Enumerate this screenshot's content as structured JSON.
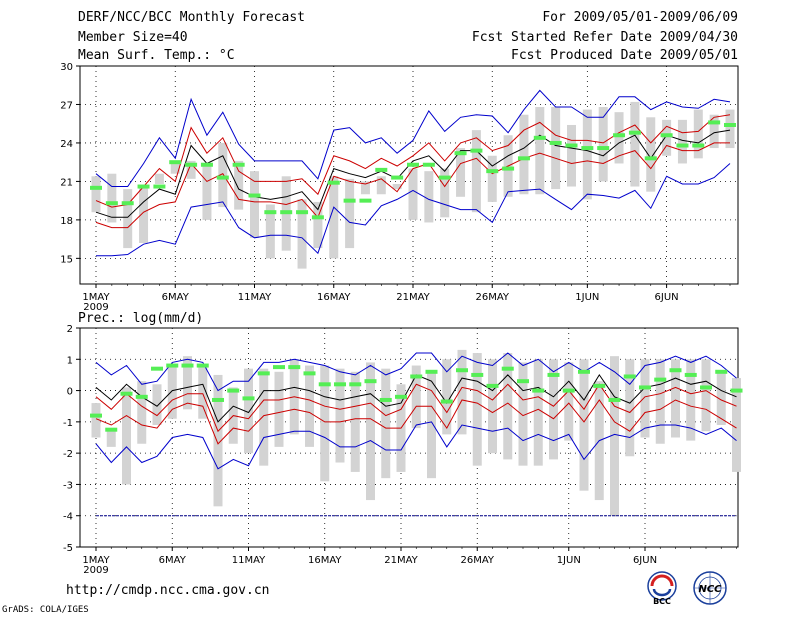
{
  "header": {
    "title": "DERF/NCC/BCC Monthly Forecast",
    "member_size": "Member Size=40",
    "variable1": "Mean Surf. Temp.: °C",
    "period": "For 2009/05/01-2009/06/09",
    "started": "Fcst Started Refer Date 2009/04/30",
    "produced": "Fcst Produced Date 2009/05/01"
  },
  "footer": {
    "url": "http://cmdp.ncc.cma.gov.cn",
    "credit": "GrADS: COLA/IGES",
    "logo1": "BCC",
    "logo2": "NCC"
  },
  "colors": {
    "max_min": "#0000cc",
    "spread": "#cc0000",
    "mean": "#000000",
    "bar": "#d3d3d3",
    "mode": "#55ee55",
    "ref": "#000088"
  },
  "chart_data": [
    {
      "type": "line",
      "title": "Mean Surf. Temp.: °C",
      "ylim": [
        13,
        30
      ],
      "yticks": [
        15,
        18,
        21,
        24,
        27,
        30
      ],
      "xticks": [
        {
          "day": 1,
          "label": "1MAY",
          "sub": "2009"
        },
        {
          "day": 6,
          "label": "6MAY"
        },
        {
          "day": 11,
          "label": "11MAY"
        },
        {
          "day": 16,
          "label": "16MAY"
        },
        {
          "day": 21,
          "label": "21MAY"
        },
        {
          "day": 26,
          "label": "26MAY"
        },
        {
          "day": 32,
          "label": "1JUN"
        },
        {
          "day": 37,
          "label": "6JUN"
        }
      ],
      "series": {
        "max": [
          21.6,
          20.6,
          20.6,
          22.4,
          24.4,
          22.8,
          27.4,
          24.6,
          26.4,
          23.9,
          22.6,
          22.6,
          22.6,
          22.6,
          21.2,
          25.0,
          25.2,
          24.0,
          24.4,
          23.2,
          24.2,
          26.5,
          24.9,
          26.0,
          26.2,
          26.1,
          24.8,
          26.6,
          28.1,
          26.8,
          26.8,
          26.0,
          26.0,
          27.6,
          27.6,
          26.6,
          27.2,
          26.8,
          26.7,
          27.4,
          27.2
        ],
        "q_hi": [
          19.5,
          19.0,
          19.2,
          20.6,
          22.0,
          21.0,
          25.2,
          23.2,
          24.4,
          21.8,
          21.0,
          21.0,
          21.0,
          21.2,
          20.0,
          23.0,
          22.6,
          22.0,
          22.8,
          22.2,
          23.0,
          24.0,
          22.6,
          24.0,
          24.4,
          23.4,
          23.8,
          25.0,
          25.6,
          24.6,
          24.2,
          24.2,
          24.0,
          24.8,
          25.4,
          24.0,
          25.3,
          24.8,
          24.9,
          26.0,
          26.2
        ],
        "mean": [
          18.6,
          18.2,
          18.2,
          19.4,
          20.4,
          20.0,
          23.8,
          22.4,
          23.0,
          20.4,
          19.8,
          19.6,
          19.8,
          20.2,
          18.8,
          22.0,
          21.6,
          21.3,
          21.8,
          21.2,
          22.6,
          23.0,
          21.8,
          23.4,
          23.4,
          22.2,
          23.0,
          23.6,
          24.6,
          23.8,
          23.6,
          23.4,
          23.0,
          24.0,
          24.6,
          22.8,
          24.6,
          24.2,
          24.0,
          24.8,
          25.0
        ],
        "q_lo": [
          17.8,
          17.4,
          17.4,
          18.6,
          19.2,
          19.4,
          22.4,
          21.0,
          21.6,
          19.6,
          19.4,
          19.4,
          19.2,
          19.6,
          18.2,
          21.4,
          21.0,
          20.8,
          21.2,
          20.2,
          22.0,
          22.4,
          20.6,
          22.4,
          22.8,
          21.6,
          22.2,
          22.8,
          23.2,
          22.8,
          22.4,
          22.6,
          22.4,
          23.0,
          23.4,
          22.0,
          23.8,
          23.4,
          23.4,
          24.0,
          24.0
        ],
        "min": [
          15.2,
          15.2,
          15.3,
          16.1,
          16.4,
          16.1,
          19.0,
          19.2,
          19.4,
          17.4,
          16.6,
          16.8,
          16.8,
          16.6,
          15.4,
          19.0,
          17.8,
          17.6,
          19.1,
          19.6,
          20.3,
          19.6,
          19.2,
          18.8,
          18.8,
          17.8,
          20.2,
          20.3,
          20.4,
          19.6,
          18.8,
          20.0,
          19.9,
          19.7,
          20.3,
          18.9,
          21.4,
          20.8,
          20.8,
          21.3,
          22.4
        ],
        "bar_top": [
          21.4,
          21.6,
          20.4,
          20.6,
          21.6,
          22.4,
          22.6,
          22.2,
          24.0,
          22.6,
          21.8,
          19.2,
          21.4,
          19.6,
          19.4,
          21.4,
          21.2,
          21.0,
          21.4,
          20.8,
          22.0,
          21.8,
          22.0,
          23.6,
          25.0,
          23.0,
          24.6,
          26.2,
          26.8,
          26.8,
          25.4,
          26.6,
          26.8,
          26.4,
          27.2,
          26.0,
          25.8,
          25.8,
          26.6,
          26.2,
          26.6
        ],
        "bar_bot": [
          18.6,
          17.8,
          15.8,
          16.2,
          20.8,
          21.6,
          21.2,
          18.0,
          19.0,
          18.8,
          16.6,
          15.0,
          15.6,
          14.2,
          15.8,
          15.0,
          15.8,
          20.0,
          20.0,
          20.4,
          18.0,
          17.8,
          18.2,
          19.8,
          18.6,
          19.4,
          19.8,
          20.0,
          20.0,
          20.4,
          20.6,
          19.6,
          21.0,
          22.4,
          20.6,
          20.2,
          23.0,
          22.4,
          22.8,
          23.6,
          23.6
        ],
        "mode": [
          20.5,
          19.3,
          19.3,
          20.6,
          20.6,
          22.5,
          22.3,
          22.3,
          21.3,
          22.3,
          19.9,
          18.6,
          18.6,
          18.6,
          18.2,
          20.9,
          19.5,
          19.5,
          21.9,
          21.3,
          22.3,
          22.3,
          21.3,
          23.2,
          23.4,
          21.8,
          22.0,
          22.8,
          24.4,
          24.0,
          23.8,
          23.6,
          23.6,
          24.6,
          24.8,
          22.8,
          24.6,
          23.8,
          23.8,
          25.6,
          25.4
        ]
      }
    },
    {
      "type": "line",
      "title": "Prec.: log(mm/d)",
      "ylim": [
        -5,
        2
      ],
      "yticks": [
        -5,
        -4,
        -3,
        -2,
        -1,
        0,
        1,
        2
      ],
      "ref_line": -4,
      "xticks": [
        {
          "day": 1,
          "label": "1MAY",
          "sub": "2009"
        },
        {
          "day": 6,
          "label": "6MAY"
        },
        {
          "day": 11,
          "label": "11MAY"
        },
        {
          "day": 16,
          "label": "16MAY"
        },
        {
          "day": 21,
          "label": "21MAY"
        },
        {
          "day": 26,
          "label": "26MAY"
        },
        {
          "day": 32,
          "label": "1JUN"
        },
        {
          "day": 37,
          "label": "6JUN"
        }
      ],
      "series": {
        "max": [
          0.9,
          0.5,
          0.8,
          0.2,
          0.3,
          0.9,
          1.0,
          0.9,
          0.0,
          0.3,
          0.3,
          0.9,
          0.9,
          1.0,
          0.9,
          0.8,
          0.6,
          0.5,
          0.8,
          0.5,
          0.7,
          1.2,
          1.2,
          0.6,
          1.1,
          0.9,
          0.8,
          1.2,
          0.8,
          1.0,
          0.6,
          0.9,
          0.6,
          0.9,
          0.6,
          0.2,
          0.8,
          0.9,
          1.1,
          0.9,
          1.1,
          0.8,
          0.4
        ],
        "mean": [
          0.1,
          -0.3,
          0.2,
          -0.2,
          -0.5,
          0.0,
          0.1,
          0.2,
          -1.0,
          -0.5,
          -0.7,
          0.0,
          0.0,
          0.1,
          0.0,
          -0.2,
          -0.3,
          -0.2,
          -0.1,
          -0.5,
          -0.4,
          0.5,
          0.3,
          -0.4,
          0.4,
          0.3,
          0.0,
          0.5,
          0.0,
          0.1,
          -0.2,
          0.3,
          -0.3,
          0.5,
          -0.2,
          -0.4,
          0.1,
          0.2,
          0.4,
          0.2,
          0.3,
          0.0,
          -0.2
        ],
        "q_hi": [
          -0.2,
          -0.6,
          -0.1,
          -0.5,
          -0.8,
          -0.3,
          -0.1,
          -0.1,
          -1.3,
          -0.8,
          -0.9,
          -0.3,
          -0.3,
          -0.2,
          -0.3,
          -0.5,
          -0.6,
          -0.5,
          -0.4,
          -0.8,
          -0.6,
          0.2,
          0.0,
          -0.7,
          0.1,
          0.0,
          -0.3,
          0.2,
          -0.3,
          -0.2,
          -0.5,
          0.0,
          -0.6,
          0.2,
          -0.5,
          -0.7,
          -0.2,
          -0.1,
          0.1,
          -0.1,
          0.0,
          -0.3,
          -0.5
        ],
        "q_lo": [
          -0.9,
          -1.1,
          -0.8,
          -1.1,
          -1.2,
          -0.6,
          -0.4,
          -0.5,
          -1.7,
          -1.2,
          -1.3,
          -0.8,
          -0.7,
          -0.6,
          -0.7,
          -1.0,
          -1.0,
          -0.9,
          -0.9,
          -1.2,
          -1.2,
          -0.5,
          -0.5,
          -1.2,
          -0.3,
          -0.4,
          -0.7,
          -0.4,
          -0.8,
          -0.6,
          -0.9,
          -0.4,
          -1.0,
          -0.3,
          -1.0,
          -1.3,
          -0.7,
          -0.6,
          -0.3,
          -0.5,
          -0.6,
          -0.9,
          -1.2
        ],
        "min": [
          -1.7,
          -2.3,
          -1.8,
          -2.3,
          -2.1,
          -1.5,
          -1.4,
          -1.5,
          -2.5,
          -2.2,
          -2.4,
          -1.5,
          -1.4,
          -1.3,
          -1.3,
          -1.5,
          -1.8,
          -1.8,
          -1.6,
          -1.9,
          -1.9,
          -1.1,
          -1.0,
          -1.8,
          -1.1,
          -1.2,
          -1.3,
          -1.2,
          -1.6,
          -1.4,
          -1.6,
          -1.4,
          -2.2,
          -1.6,
          -1.4,
          -1.5,
          -1.2,
          -1.1,
          -1.1,
          -1.2,
          -1.4,
          -1.2,
          -1.6
        ],
        "bar_top": [
          -0.4,
          -1.2,
          0.1,
          0.3,
          0.2,
          0.8,
          1.1,
          0.8,
          0.5,
          0.1,
          0.7,
          0.7,
          0.6,
          1.0,
          0.8,
          0.8,
          0.7,
          0.6,
          0.9,
          0.7,
          0.2,
          0.8,
          0.6,
          1.0,
          1.3,
          1.2,
          1.0,
          1.2,
          0.9,
          1.0,
          1.0,
          0.9,
          1.0,
          0.3,
          1.1,
          1.0,
          1.0,
          1.0,
          1.0,
          1.0,
          1.0,
          0.6,
          0.4
        ],
        "bar_bot": [
          -1.5,
          -1.8,
          -3.0,
          -1.7,
          -1.1,
          -0.9,
          -0.6,
          -0.9,
          -3.7,
          -1.7,
          -2.0,
          -2.4,
          -1.8,
          -1.4,
          -1.8,
          -2.9,
          -2.3,
          -2.6,
          -3.5,
          -2.8,
          -2.6,
          -1.2,
          -2.8,
          -1.4,
          -1.4,
          -2.4,
          -2.0,
          -2.2,
          -2.4,
          -2.4,
          -2.2,
          -1.6,
          -3.2,
          -3.5,
          -4.0,
          -2.1,
          -1.5,
          -1.7,
          -1.5,
          -1.6,
          -1.3,
          -1.1,
          -2.6
        ],
        "mode": [
          -0.8,
          -1.25,
          -0.1,
          -0.2,
          0.7,
          0.8,
          0.8,
          0.8,
          -0.3,
          0.0,
          -0.25,
          0.55,
          0.75,
          0.75,
          0.55,
          0.2,
          0.2,
          0.2,
          0.3,
          -0.3,
          -0.2,
          0.45,
          0.6,
          -0.35,
          0.65,
          0.5,
          0.15,
          0.7,
          0.3,
          0.0,
          0.5,
          0.0,
          0.6,
          0.15,
          -0.3,
          0.45,
          0.1,
          0.35,
          0.65,
          0.5,
          0.1,
          0.6,
          0.0
        ]
      }
    }
  ]
}
